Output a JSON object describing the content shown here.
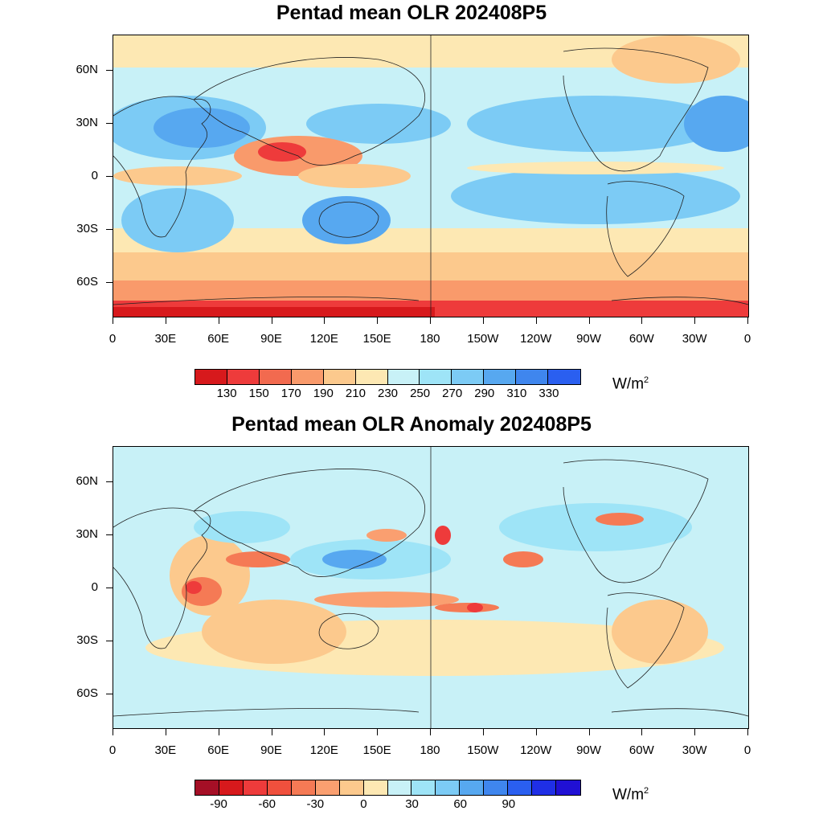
{
  "panels": [
    {
      "id": "mean",
      "title": "Pentad mean OLR 202408P5",
      "units": "W/m",
      "units_sup": "2",
      "colorbar": {
        "colors": [
          "#d7191c",
          "#ee3b3b",
          "#f26a4f",
          "#f99a6b",
          "#fcc98d",
          "#fde8b3",
          "#c8f1f7",
          "#9ee4f7",
          "#7ccbf5",
          "#57a8f0",
          "#3f86ee",
          "#2a5ff0"
        ],
        "labels": [
          "130",
          "150",
          "170",
          "190",
          "210",
          "230",
          "250",
          "270",
          "290",
          "310",
          "330"
        ]
      }
    },
    {
      "id": "anomaly",
      "title": "Pentad mean OLR Anomaly 202408P5",
      "units": "W/m",
      "units_sup": "2",
      "colorbar": {
        "colors": [
          "#a50f26",
          "#d7191c",
          "#ee3b3b",
          "#f0503d",
          "#f57a55",
          "#fa9f70",
          "#fcc98d",
          "#fde8b3",
          "#c8f1f7",
          "#9ee4f7",
          "#7ccbf5",
          "#57a8f0",
          "#3f86ee",
          "#2a5ff0",
          "#1f2fe6",
          "#2010d4"
        ],
        "labels": [
          "-90",
          "",
          "-60",
          "",
          "-30",
          "",
          "0",
          "",
          "30",
          "",
          "60",
          "",
          "90"
        ]
      }
    }
  ],
  "lon_labels": [
    "0",
    "30E",
    "60E",
    "90E",
    "120E",
    "150E",
    "180",
    "150W",
    "120W",
    "90W",
    "60W",
    "30W",
    "0"
  ],
  "lat_labels": [
    "60N",
    "30N",
    "0",
    "30S",
    "60S"
  ]
}
